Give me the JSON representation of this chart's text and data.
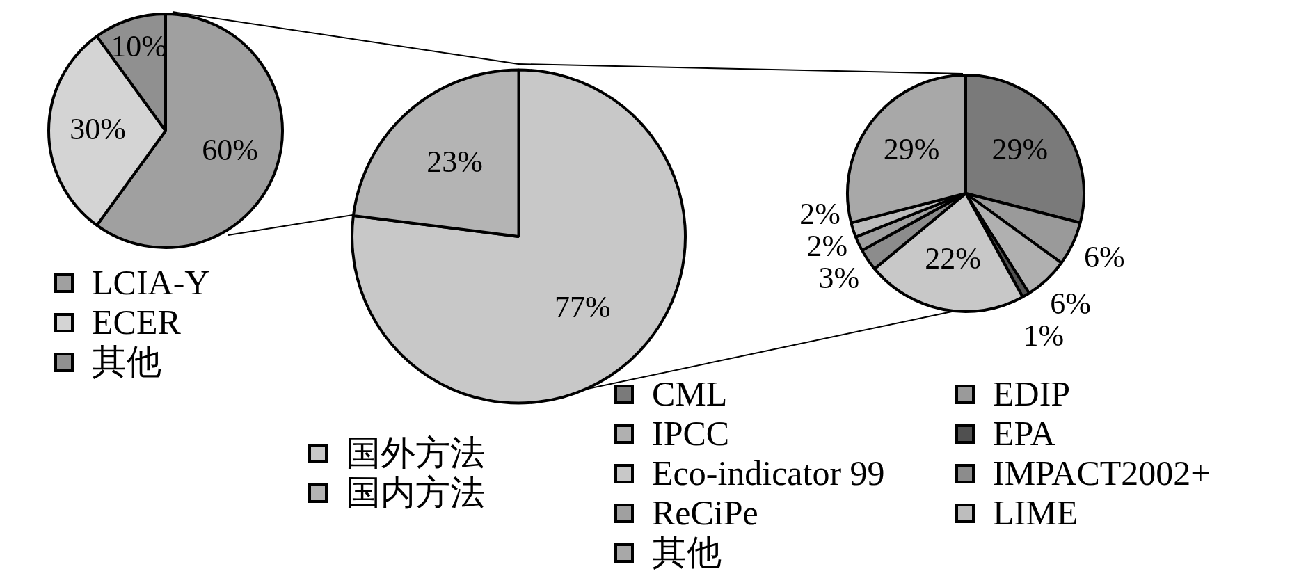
{
  "chart_data": [
    {
      "type": "pie",
      "categories": [
        "LCIA-Y",
        "ECER",
        "其他"
      ],
      "values": [
        60,
        30,
        10
      ],
      "colors": [
        "#a0a0a0",
        "#d4d4d4",
        "#909090"
      ],
      "value_labels": [
        "60%",
        "30%",
        "10%"
      ],
      "legend": "bottom"
    },
    {
      "type": "pie",
      "categories": [
        "国外方法",
        "国内方法"
      ],
      "values": [
        77,
        23
      ],
      "colors": [
        "#c8c8c8",
        "#b4b4b4"
      ],
      "value_labels": [
        "77%",
        "23%"
      ],
      "legend": "bottom"
    },
    {
      "type": "pie",
      "categories": [
        "CML",
        "EDIP",
        "IPCC",
        "EPA",
        "Eco-indicator 99",
        "IMPACT2002+",
        "ReCiPe",
        "LIME",
        "其他"
      ],
      "values": [
        29,
        6,
        6,
        1,
        22,
        3,
        2,
        2,
        29
      ],
      "colors": [
        "#7a7a7a",
        "#9a9a9a",
        "#b0b0b0",
        "#505050",
        "#c8c8c8",
        "#8c8c8c",
        "#a0a0a0",
        "#bdbdbd",
        "#a8a8a8"
      ],
      "value_labels": [
        "29%",
        "6%",
        "6%",
        "1%",
        "22%",
        "3%",
        "2%",
        "2%",
        "29%"
      ],
      "legend": "bottom"
    }
  ]
}
